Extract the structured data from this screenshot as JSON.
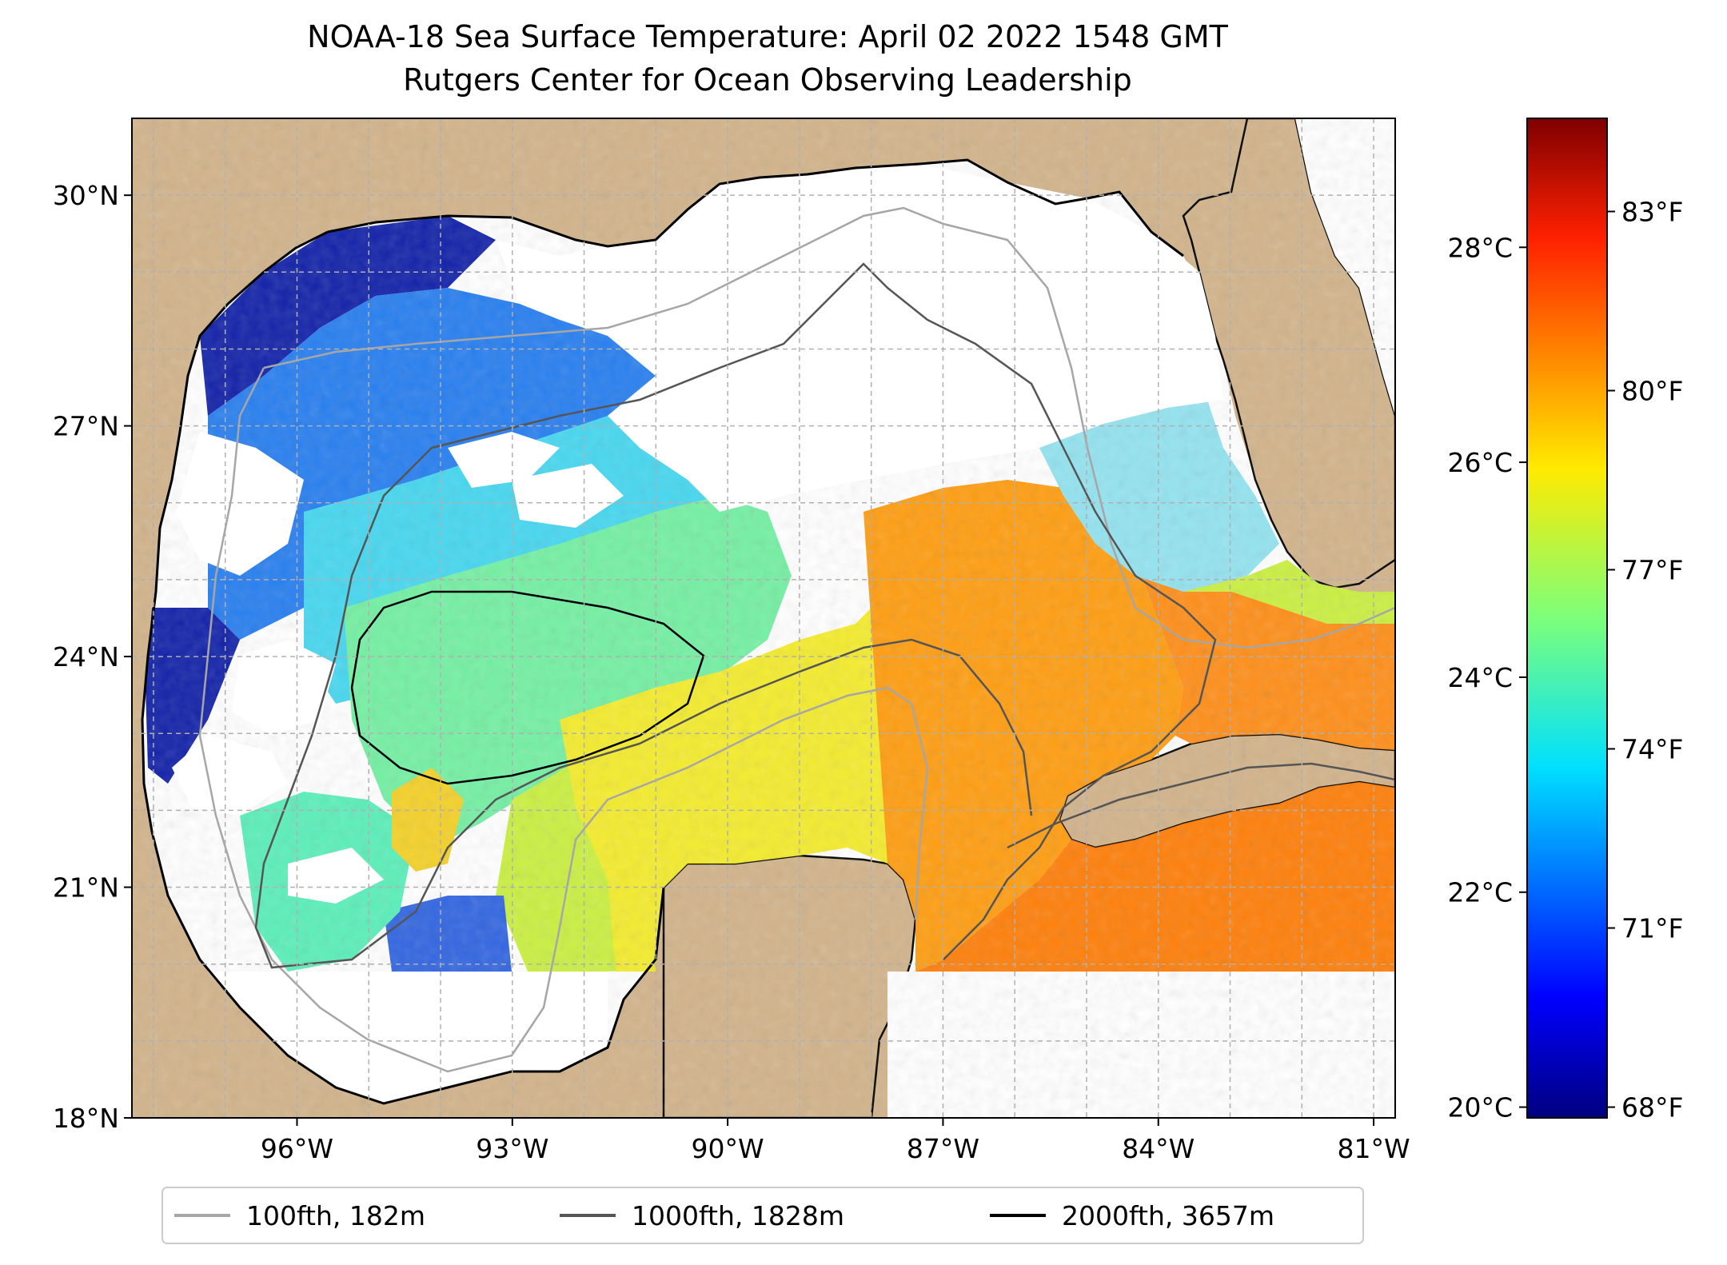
{
  "title": {
    "line1": "NOAA-18 Sea Surface Temperature: April 02 2022 1548 GMT",
    "line2": "Rutgers Center for Ocean Observing Leadership"
  },
  "map": {
    "lat_range": [
      18,
      31
    ],
    "lon_range": [
      -98.3,
      -80.7
    ],
    "lat_ticks": [
      {
        "value": 18,
        "label": "18°N"
      },
      {
        "value": 21,
        "label": "21°N"
      },
      {
        "value": 24,
        "label": "24°N"
      },
      {
        "value": 27,
        "label": "27°N"
      },
      {
        "value": 30,
        "label": "30°N"
      }
    ],
    "lon_ticks": [
      {
        "value": -96,
        "label": "96°W"
      },
      {
        "value": -93,
        "label": "93°W"
      },
      {
        "value": -90,
        "label": "90°W"
      },
      {
        "value": -87,
        "label": "87°W"
      },
      {
        "value": -84,
        "label": "84°W"
      },
      {
        "value": -81,
        "label": "81°W"
      }
    ],
    "grid": true,
    "colors": {
      "land": "#d2b48c",
      "no_data": "#ffffff",
      "grid": "#b0b0b0",
      "coastline": "#000000",
      "lakes": "#9bb2dd"
    }
  },
  "colorbar": {
    "colormap": "jet",
    "celsius_ticks": [
      {
        "value": 20,
        "label": "20°C"
      },
      {
        "value": 22,
        "label": "22°C"
      },
      {
        "value": 24,
        "label": "24°C"
      },
      {
        "value": 26,
        "label": "26°C"
      },
      {
        "value": 28,
        "label": "28°C"
      }
    ],
    "fahrenheit_ticks": [
      {
        "value": 68,
        "label": "68°F"
      },
      {
        "value": 71,
        "label": "71°F"
      },
      {
        "value": 74,
        "label": "74°F"
      },
      {
        "value": 77,
        "label": "77°F"
      },
      {
        "value": 80,
        "label": "80°F"
      },
      {
        "value": 83,
        "label": "83°F"
      }
    ],
    "range_c": [
      19.9,
      29.2
    ]
  },
  "legend": {
    "items": [
      {
        "label": "100fth, 182m",
        "color": "#a6a6a6"
      },
      {
        "label": "1000fth, 1828m",
        "color": "#555555"
      },
      {
        "label": "2000fth, 3657m",
        "color": "#000000"
      }
    ]
  }
}
